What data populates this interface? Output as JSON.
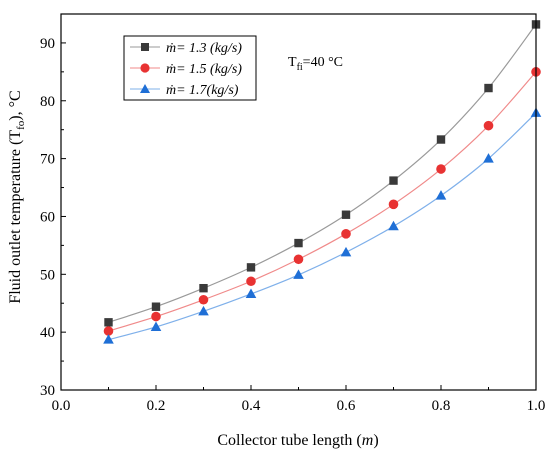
{
  "chart_data": {
    "type": "line",
    "xlabel": "Collector tube length (m)",
    "xlabel_parts": {
      "text": "Collector tube length (",
      "unit": "m",
      "close": ")"
    },
    "ylabel": "Fluid outlet temperature (Tfo), °C",
    "ylabel_parts": {
      "pre": "Fluid outlet temperature (T",
      "sub": "fo",
      "post": "), °C"
    },
    "xlim": [
      0.0,
      1.0
    ],
    "ylim": [
      30,
      95
    ],
    "x_ticks": [
      0.0,
      0.2,
      0.4,
      0.6,
      0.8,
      1.0
    ],
    "x_tick_labels": [
      "0.0",
      "0.2",
      "0.4",
      "0.6",
      "0.8",
      "1.0"
    ],
    "y_ticks": [
      30,
      40,
      50,
      60,
      70,
      80,
      90
    ],
    "y_tick_labels": [
      "30",
      "40",
      "50",
      "60",
      "70",
      "80",
      "90"
    ],
    "grid": false,
    "legend_position": "top-left",
    "annotation": {
      "pre": "T",
      "sub": "fi",
      "post": "=40 °C"
    },
    "x": [
      0.1,
      0.2,
      0.3,
      0.4,
      0.5,
      0.6,
      0.7,
      0.8,
      0.9,
      1.0
    ],
    "series": [
      {
        "name": "ṁ= 1.3 (kg/s)",
        "marker": "square",
        "color": "#3a3a3a",
        "line_color": "#9a9a9a",
        "values": [
          41.7,
          44.4,
          47.6,
          51.2,
          55.4,
          60.3,
          66.2,
          73.3,
          82.2,
          93.2
        ]
      },
      {
        "name": "ṁ= 1.5 (kg/s)",
        "marker": "circle",
        "color": "#e83232",
        "line_color": "#f08a8a",
        "values": [
          40.2,
          42.7,
          45.6,
          48.8,
          52.6,
          57.0,
          62.1,
          68.2,
          75.7,
          85.0
        ]
      },
      {
        "name": "ṁ= 1.7(kg/s)",
        "marker": "triangle",
        "color": "#1f6fd6",
        "line_color": "#7fb0ea",
        "values": [
          38.7,
          40.9,
          43.6,
          46.6,
          49.9,
          53.8,
          58.3,
          63.6,
          70.0,
          77.9
        ]
      }
    ]
  }
}
